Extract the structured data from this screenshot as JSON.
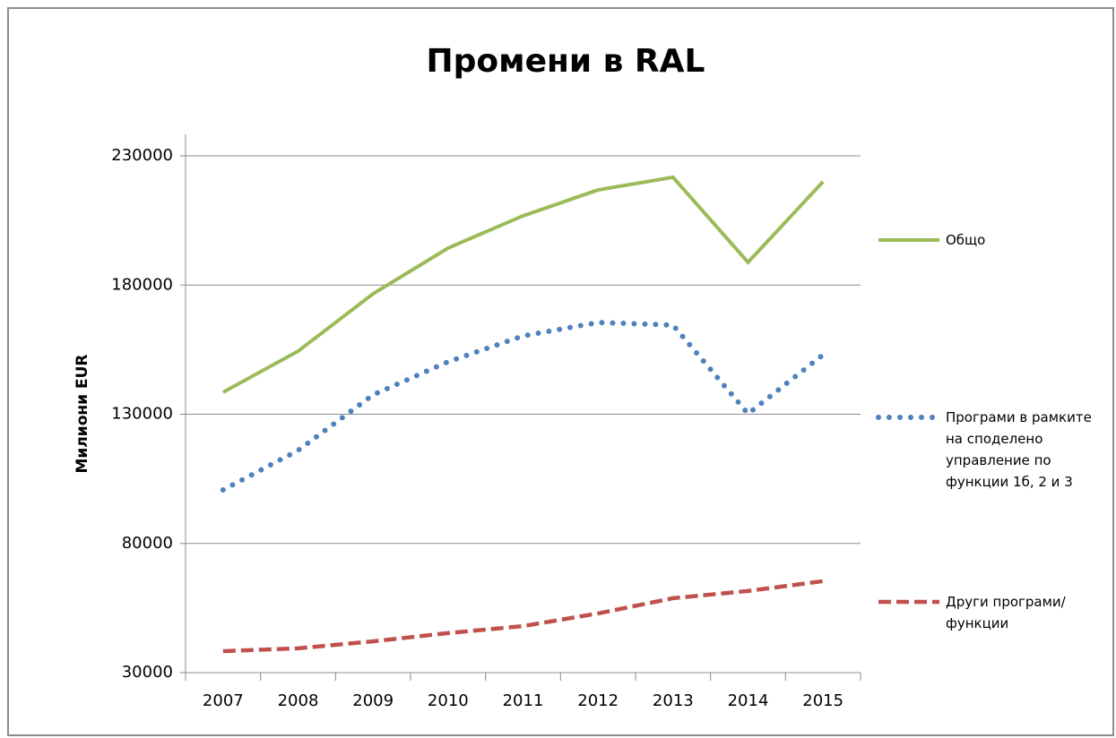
{
  "chart_data": {
    "type": "line",
    "title": "Промени в RAL",
    "y_label": "Милиони EUR",
    "categories": [
      "2007",
      "2008",
      "2009",
      "2010",
      "2011",
      "2012",
      "2013",
      "2014",
      "2015"
    ],
    "series": [
      {
        "name": "Общо",
        "color": "#9bbb59",
        "style": "solid",
        "values": [
          138500,
          154400,
          176600,
          194300,
          206800,
          216800,
          221700,
          188800,
          220000
        ]
      },
      {
        "name": "Програми в рамките на споделено управление по функции 1б, 2 и 3",
        "color": "#4f81bd",
        "style": "dotted",
        "values": [
          100700,
          116000,
          137500,
          150300,
          160300,
          165500,
          164500,
          130200,
          153000
        ]
      },
      {
        "name": "Други програми/функции",
        "color": "#c0504d",
        "style": "dashed",
        "values": [
          38300,
          39400,
          42100,
          45300,
          48000,
          52900,
          58800,
          61600,
          65400
        ]
      }
    ],
    "ylim": [
      30000,
      230000
    ],
    "yticks": [
      30000,
      80000,
      130000,
      180000,
      230000
    ],
    "grid": true,
    "legend": "right"
  }
}
